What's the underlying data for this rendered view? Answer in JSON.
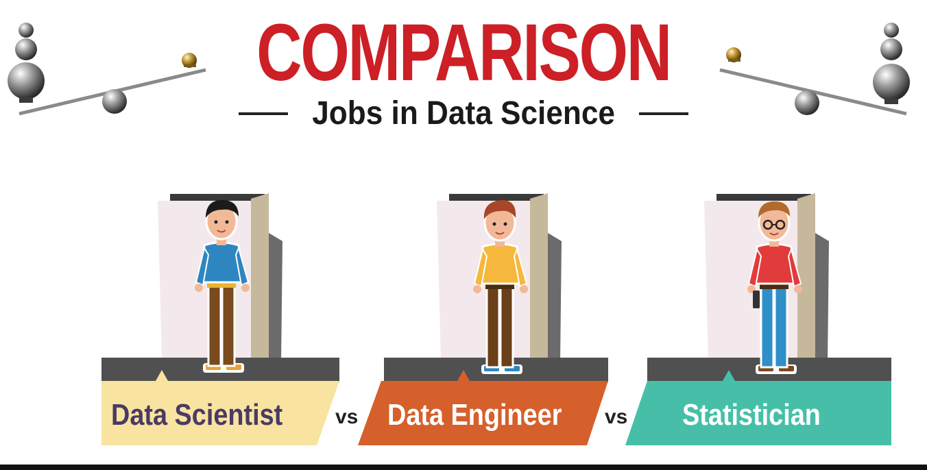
{
  "header": {
    "title": "COMPARISON",
    "subtitle": "Jobs in Data Science"
  },
  "roles": [
    {
      "label": "Data Scientist",
      "banner_color": "#f9e3a1",
      "text_color": "#4a3b63",
      "shirt_color": "#2e86c1",
      "pants_color": "#7a4b1e"
    },
    {
      "label": "Data Engineer",
      "banner_color": "#d5602b",
      "text_color": "#ffffff",
      "shirt_color": "#f5b83d",
      "pants_color": "#6b3f18"
    },
    {
      "label": "Statistician",
      "banner_color": "#47bfa8",
      "text_color": "#ffffff",
      "shirt_color": "#e23b3b",
      "pants_color": "#2e8fc9"
    }
  ],
  "separators": {
    "vs_1": "vs",
    "vs_2": "vs"
  },
  "colors": {
    "title_red": "#cc1f26",
    "platform_gray": "#505050",
    "door_panel": "#f3e9ec"
  }
}
